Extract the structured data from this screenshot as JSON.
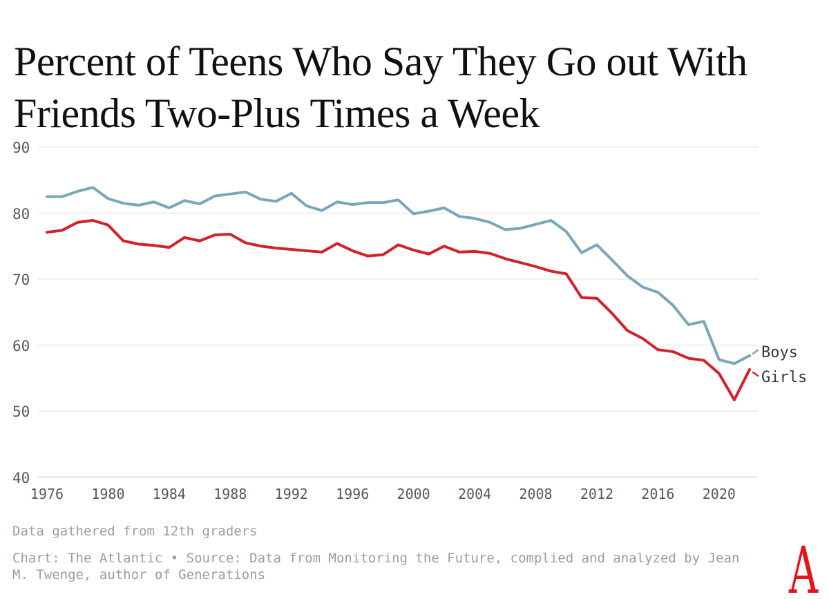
{
  "header": {
    "title_line1": "Percent of Teens Who Say They Go out With",
    "title_line2": "Friends Two-Plus Times a Week"
  },
  "chart_data": {
    "type": "line",
    "title": "Percent of Teens Who Say They Go out With Friends Two-Plus Times a Week",
    "xlabel": "",
    "ylabel": "",
    "x": [
      1976,
      1977,
      1978,
      1979,
      1980,
      1981,
      1982,
      1983,
      1984,
      1985,
      1986,
      1987,
      1988,
      1989,
      1990,
      1991,
      1992,
      1993,
      1994,
      1995,
      1996,
      1997,
      1998,
      1999,
      2000,
      2001,
      2002,
      2003,
      2004,
      2005,
      2006,
      2007,
      2008,
      2009,
      2010,
      2011,
      2012,
      2013,
      2014,
      2015,
      2016,
      2017,
      2018,
      2019,
      2020,
      2021,
      2022
    ],
    "series": [
      {
        "name": "Boys",
        "color": "#7aa6ba",
        "values": [
          82.5,
          82.5,
          83.3,
          83.9,
          82.2,
          81.5,
          81.2,
          81.7,
          80.8,
          81.9,
          81.4,
          82.6,
          82.9,
          83.2,
          82.1,
          81.8,
          83.0,
          81.1,
          80.4,
          81.7,
          81.3,
          81.6,
          81.6,
          82.0,
          79.9,
          80.3,
          80.8,
          79.5,
          79.2,
          78.6,
          77.5,
          77.7,
          78.3,
          78.9,
          77.2,
          74.0,
          75.2,
          72.9,
          70.5,
          68.8,
          68.0,
          66.0,
          63.1,
          63.6,
          57.8,
          57.2,
          58.4
        ]
      },
      {
        "name": "Girls",
        "color": "#d1212a",
        "values": [
          77.1,
          77.4,
          78.6,
          78.9,
          78.2,
          75.8,
          75.3,
          75.1,
          74.8,
          76.3,
          75.8,
          76.7,
          76.8,
          75.5,
          75.0,
          74.7,
          74.5,
          74.3,
          74.1,
          75.4,
          74.3,
          73.5,
          73.7,
          75.2,
          74.4,
          73.8,
          75.0,
          74.1,
          74.2,
          73.9,
          73.1,
          72.5,
          71.9,
          71.2,
          70.8,
          67.2,
          67.1,
          64.8,
          62.2,
          61.0,
          59.3,
          59.0,
          58.0,
          57.7,
          55.7,
          51.7,
          56.3
        ]
      }
    ],
    "xticks": [
      "1976",
      "1980",
      "1984",
      "1988",
      "1992",
      "1996",
      "2000",
      "2004",
      "2008",
      "2012",
      "2016",
      "2020"
    ],
    "yticks": [
      "90",
      "80",
      "70",
      "60",
      "50",
      "40"
    ],
    "ylim": [
      40,
      90
    ],
    "grid": true,
    "grid_color": "#e9eaea",
    "baseline_color": "#d8d9da",
    "tick_label_color": "#55595c",
    "legend_position": "right-end-labels"
  },
  "footer": {
    "note": "Data gathered from 12th graders",
    "credit": "Chart: The Atlantic • Source: Data from Monitoring the Future, complied and analyzed by Jean M. Twenge, author of Generations",
    "logo_letter": "A",
    "logo_color": "#e7131a"
  }
}
